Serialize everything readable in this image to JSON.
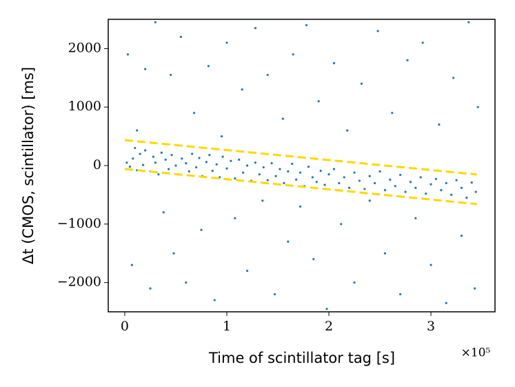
{
  "chart_data": {
    "type": "scatter",
    "x_label": "Time of scintillator tag [s]",
    "y_label": "Δt (CMOS, scintillator) [ms]",
    "x_offset_label": "×10⁵",
    "color": "#1f77b4",
    "xlim": [
      -16200,
      362800
    ],
    "ylim": [
      -2500,
      2500
    ],
    "xticks": [
      0,
      {
        "value": 100000,
        "label": "1"
      },
      {
        "value": 200000,
        "label": "2"
      },
      {
        "value": 300000,
        "label": "3"
      }
    ],
    "yticks": [
      {
        "value": -2000,
        "label": "−2000"
      },
      {
        "value": -1000,
        "label": "−1000"
      },
      0,
      1000,
      2000
    ],
    "x": [
      2000,
      5000,
      8000,
      10000,
      12000,
      15000,
      18000,
      20000,
      25000,
      28000,
      30000,
      33000,
      36000,
      40000,
      43000,
      46000,
      50000,
      53000,
      56000,
      60000,
      63000,
      66000,
      70000,
      73000,
      76000,
      80000,
      83000,
      86000,
      90000,
      93000,
      96000,
      100000,
      104000,
      108000,
      112000,
      116000,
      120000,
      124000,
      128000,
      132000,
      136000,
      140000,
      144000,
      148000,
      152000,
      156000,
      160000,
      164000,
      168000,
      172000,
      176000,
      180000,
      184000,
      188000,
      192000,
      196000,
      200000,
      205000,
      210000,
      215000,
      220000,
      225000,
      230000,
      235000,
      240000,
      245000,
      250000,
      255000,
      260000,
      265000,
      270000,
      275000,
      280000,
      285000,
      290000,
      295000,
      300000,
      305000,
      310000,
      315000,
      320000,
      325000,
      330000,
      335000,
      340000,
      344000,
      3000,
      7000,
      12000,
      20000,
      25000,
      30000,
      38000,
      45000,
      48000,
      55000,
      60000,
      68000,
      75000,
      82000,
      88000,
      95000,
      100000,
      108000,
      115000,
      120000,
      128000,
      135000,
      140000,
      147000,
      155000,
      160000,
      165000,
      172000,
      178000,
      185000,
      190000,
      198000,
      205000,
      212000,
      218000,
      225000,
      232000,
      240000,
      248000,
      255000,
      262000,
      270000,
      277000,
      285000,
      292000,
      300000,
      308000,
      315000,
      322000,
      330000,
      337000,
      343000,
      346000
    ],
    "values": [
      50,
      -20,
      120,
      300,
      -80,
      200,
      10,
      260,
      -100,
      150,
      50,
      -150,
      220,
      100,
      -60,
      180,
      0,
      -150,
      120,
      40,
      -100,
      200,
      -30,
      130,
      -180,
      60,
      180,
      -90,
      20,
      -200,
      150,
      -50,
      80,
      -220,
      100,
      -120,
      0,
      -260,
      50,
      -150,
      -30,
      -250,
      40,
      -180,
      -60,
      -300,
      -100,
      30,
      -240,
      -120,
      -350,
      -20,
      -200,
      -280,
      -90,
      -330,
      -150,
      -60,
      -300,
      -200,
      -380,
      -120,
      -260,
      -400,
      -180,
      -300,
      -100,
      -420,
      -240,
      -350,
      -160,
      -450,
      -280,
      -380,
      -200,
      -480,
      -320,
      -230,
      -420,
      -300,
      -500,
      -250,
      -380,
      -550,
      -290,
      -450,
      1900,
      -1700,
      600,
      1650,
      -2100,
      2450,
      -800,
      1550,
      -1500,
      2200,
      -2000,
      900,
      -1100,
      1700,
      -2300,
      500,
      2100,
      -900,
      1300,
      -1800,
      2350,
      -600,
      1550,
      -2200,
      800,
      -1300,
      1900,
      -700,
      2400,
      -1600,
      1100,
      -2450,
      1750,
      -1000,
      600,
      -2000,
      1400,
      -600,
      2300,
      -1500,
      900,
      -2200,
      1800,
      -900,
      2100,
      -1700,
      700,
      -2350,
      1500,
      -1200,
      2450,
      -2100,
      1000
    ],
    "lines": [
      {
        "x": [
          0,
          345000
        ],
        "values": [
          435,
          -153
        ],
        "color": "#ffd700",
        "dashed": true
      },
      {
        "x": [
          0,
          345000
        ],
        "values": [
          -59,
          -659
        ],
        "color": "#ffd700",
        "dashed": true
      }
    ]
  }
}
